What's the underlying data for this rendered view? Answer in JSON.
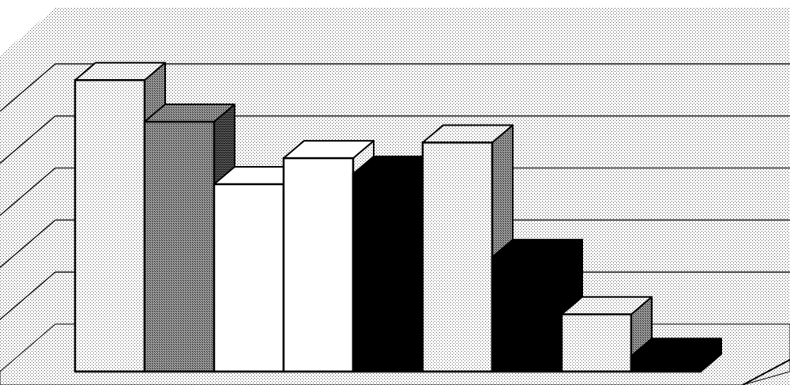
{
  "chart_data": {
    "type": "bar",
    "style": "3d",
    "categories": [
      "",
      "",
      "",
      "",
      "",
      "",
      "",
      "",
      ""
    ],
    "values": [
      5.6,
      4.8,
      3.6,
      4.1,
      3.8,
      4.4,
      2.2,
      1.1,
      0.3
    ],
    "bar_fills": [
      "light-dots",
      "dark-dots",
      "white",
      "white",
      "black",
      "light-dots",
      "black",
      "light-dots",
      "black"
    ],
    "ylim": [
      0,
      6
    ],
    "gridlines": [
      1,
      2,
      3,
      4,
      5
    ],
    "grid": true,
    "legend": "none",
    "title": "",
    "xlabel": "",
    "ylabel": ""
  }
}
